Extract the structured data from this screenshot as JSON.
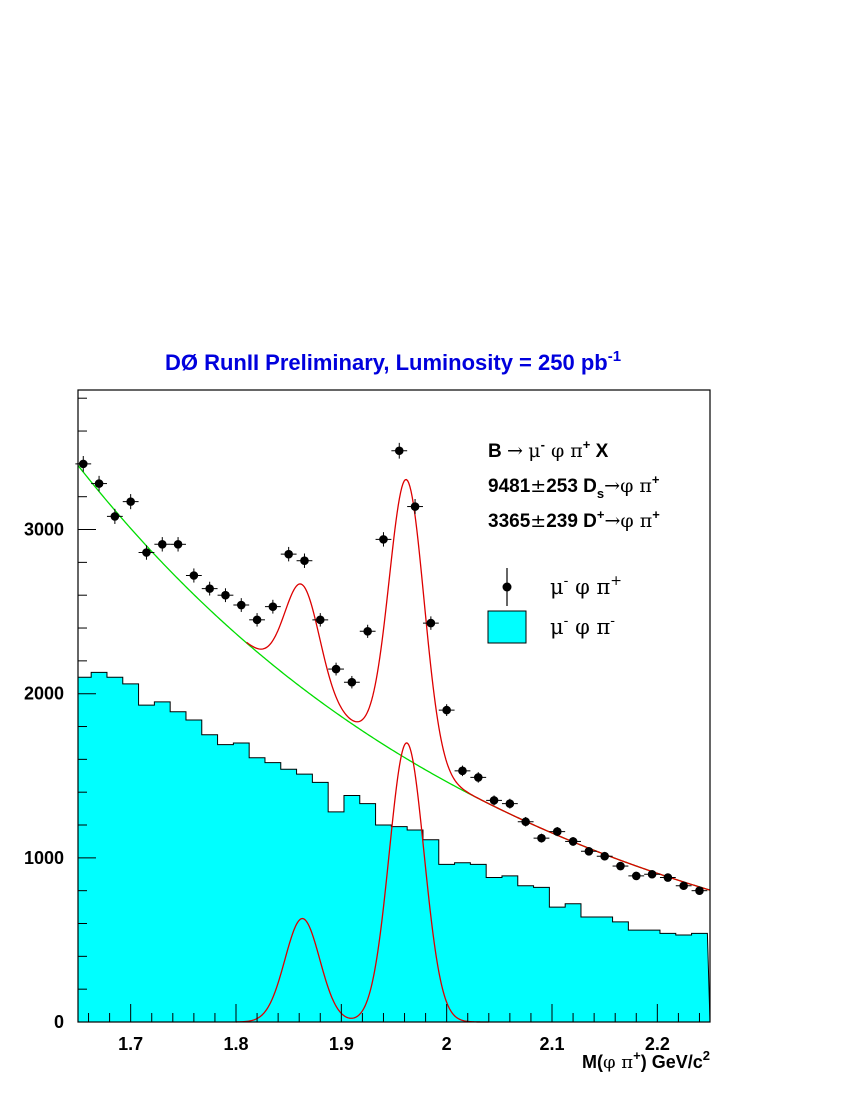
{
  "chart_data": {
    "type": "histogram",
    "title_parts": {
      "main": "DØ RunII  Preliminary, Luminosity = 250 pb",
      "sup": "-1"
    },
    "xlabel_parts": {
      "pre": "M(",
      "greek": "φ π",
      "sup1": "+",
      "post": ") GeV/c",
      "sup2": "2"
    },
    "xlim": [
      1.65,
      2.25
    ],
    "ylim": [
      0,
      3850
    ],
    "x_ticks": [
      {
        "v": 1.7,
        "label": "1.7"
      },
      {
        "v": 1.8,
        "label": "1.8"
      },
      {
        "v": 1.9,
        "label": "1.9"
      },
      {
        "v": 2.0,
        "label": "2"
      },
      {
        "v": 2.1,
        "label": "2.1"
      },
      {
        "v": 2.2,
        "label": "2.2"
      }
    ],
    "y_ticks": [
      {
        "v": 0,
        "label": "0"
      },
      {
        "v": 1000,
        "label": "1000"
      },
      {
        "v": 2000,
        "label": "2000"
      },
      {
        "v": 3000,
        "label": "3000"
      }
    ],
    "annotations": {
      "line1": {
        "a": "B ",
        "arrow": "→",
        "b": "μ",
        "s1": "-",
        "c": " φ π",
        "s2": "+",
        "d": " X"
      },
      "line2": {
        "num": "9481",
        "pm": "±",
        "err": "253",
        "d": "  D",
        "sub": "s",
        "arrow": "→",
        "g": "φ π",
        "sup": "+"
      },
      "line3": {
        "num": "3365",
        "pm": "±",
        "err": "239",
        "d": "  D",
        "sup1": "+",
        "arrow": "→",
        "g": "φ π",
        "sup2": "+"
      }
    },
    "legend": {
      "placement": "top-right",
      "entries": [
        {
          "kind": "points",
          "base": "μ",
          "s1": "-",
          "mid": " φ π",
          "s2": "+"
        },
        {
          "kind": "filled",
          "base": "μ",
          "s1": "-",
          "mid": " φ π",
          "s2": "-"
        }
      ]
    },
    "series": [
      {
        "kind": "points",
        "bin_width": 0.015,
        "x": [
          1.655,
          1.67,
          1.685,
          1.7,
          1.715,
          1.73,
          1.745,
          1.76,
          1.775,
          1.79,
          1.805,
          1.82,
          1.835,
          1.85,
          1.865,
          1.88,
          1.895,
          1.91,
          1.925,
          1.94,
          1.955,
          1.97,
          1.985,
          2.0,
          2.015,
          2.03,
          2.045,
          2.06,
          2.075,
          2.09,
          2.105,
          2.12,
          2.135,
          2.15,
          2.165,
          2.18,
          2.195,
          2.21,
          2.225,
          2.24
        ],
        "y": [
          3400,
          3280,
          3080,
          3170,
          2860,
          2910,
          2910,
          2720,
          2640,
          2600,
          2540,
          2450,
          2530,
          2850,
          2810,
          2450,
          2150,
          2070,
          2380,
          2940,
          3480,
          3140,
          2430,
          1900,
          1530,
          1490,
          1350,
          1330,
          1220,
          1120,
          1160,
          1100,
          1040,
          1010,
          950,
          890,
          900,
          880,
          830,
          800
        ],
        "err": [
          48,
          47,
          46,
          46,
          44,
          44,
          44,
          43,
          42,
          42,
          42,
          41,
          42,
          44,
          44,
          41,
          39,
          38,
          40,
          44,
          48,
          46,
          41,
          36,
          32,
          32,
          30,
          30,
          29,
          27,
          28,
          27,
          26,
          26,
          25,
          24,
          24,
          24,
          23,
          23
        ],
        "color": "#000000"
      },
      {
        "kind": "filled",
        "bin_width": 0.015,
        "x0": 1.6475,
        "values": [
          2100,
          2130,
          2100,
          2060,
          1930,
          1950,
          1890,
          1840,
          1750,
          1690,
          1700,
          1610,
          1580,
          1540,
          1510,
          1460,
          1280,
          1380,
          1330,
          1200,
          1190,
          1170,
          1110,
          960,
          970,
          960,
          880,
          890,
          830,
          820,
          700,
          720,
          640,
          640,
          610,
          560,
          560,
          540,
          530,
          540
        ],
        "color": "#00ffff"
      }
    ],
    "curves": {
      "background": {
        "color": "#00dd00",
        "a": 3350,
        "b": 2.4,
        "x0": 1.655
      },
      "signal": {
        "color": "#dd0000",
        "peaks": [
          {
            "mu": 1.863,
            "sigma": 0.0165,
            "amp": 630
          },
          {
            "mu": 1.962,
            "sigma": 0.0165,
            "amp": 1700
          }
        ]
      }
    }
  }
}
